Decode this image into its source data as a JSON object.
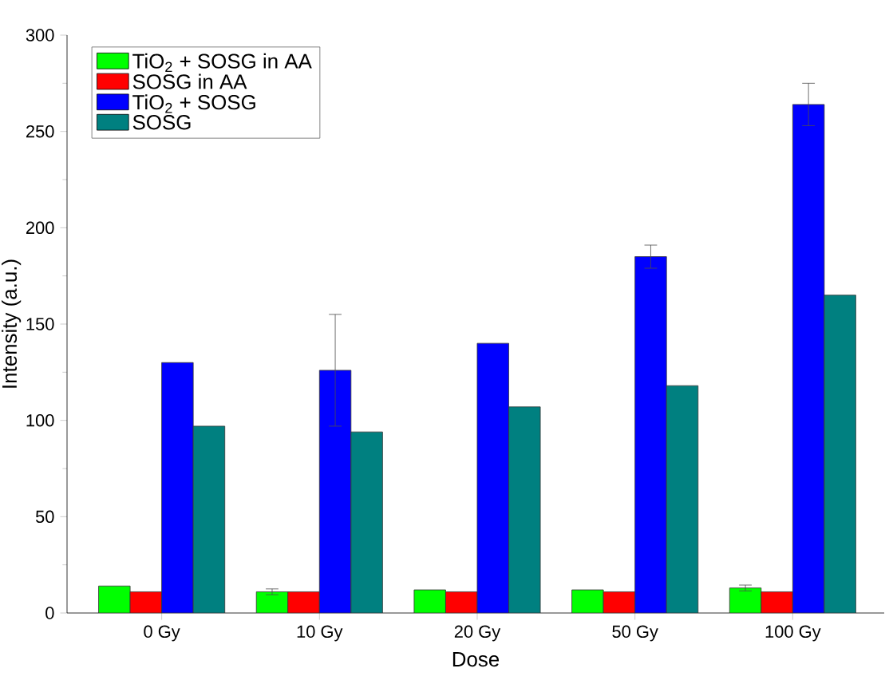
{
  "chart_data": {
    "type": "bar",
    "xlabel": "Dose",
    "ylabel": "Intensity (a.u.)",
    "categories": [
      "0 Gy",
      "10 Gy",
      "20 Gy",
      "50 Gy",
      "100 Gy"
    ],
    "series": [
      {
        "name": "TiO$_{2}$ + SOSG in AA",
        "color": "#00ff00",
        "values": [
          14,
          11,
          12,
          12,
          13
        ],
        "errors": [
          null,
          1.5,
          null,
          null,
          1.5
        ]
      },
      {
        "name": "SOSG in AA",
        "color": "#ff0000",
        "values": [
          11,
          11,
          11,
          11,
          11
        ]
      },
      {
        "name": "TiO$_{2}$ + SOSG",
        "color": "#0000ff",
        "values": [
          130,
          126,
          140,
          185,
          264
        ],
        "errors": [
          null,
          29,
          null,
          6,
          11
        ]
      },
      {
        "name": "SOSG",
        "color": "#008080",
        "values": [
          97,
          94,
          107,
          118,
          165
        ]
      }
    ],
    "ylim": [
      0,
      300
    ],
    "yticks": [
      0,
      50,
      100,
      150,
      200,
      250,
      300
    ],
    "legend": "top left",
    "grid": false
  }
}
